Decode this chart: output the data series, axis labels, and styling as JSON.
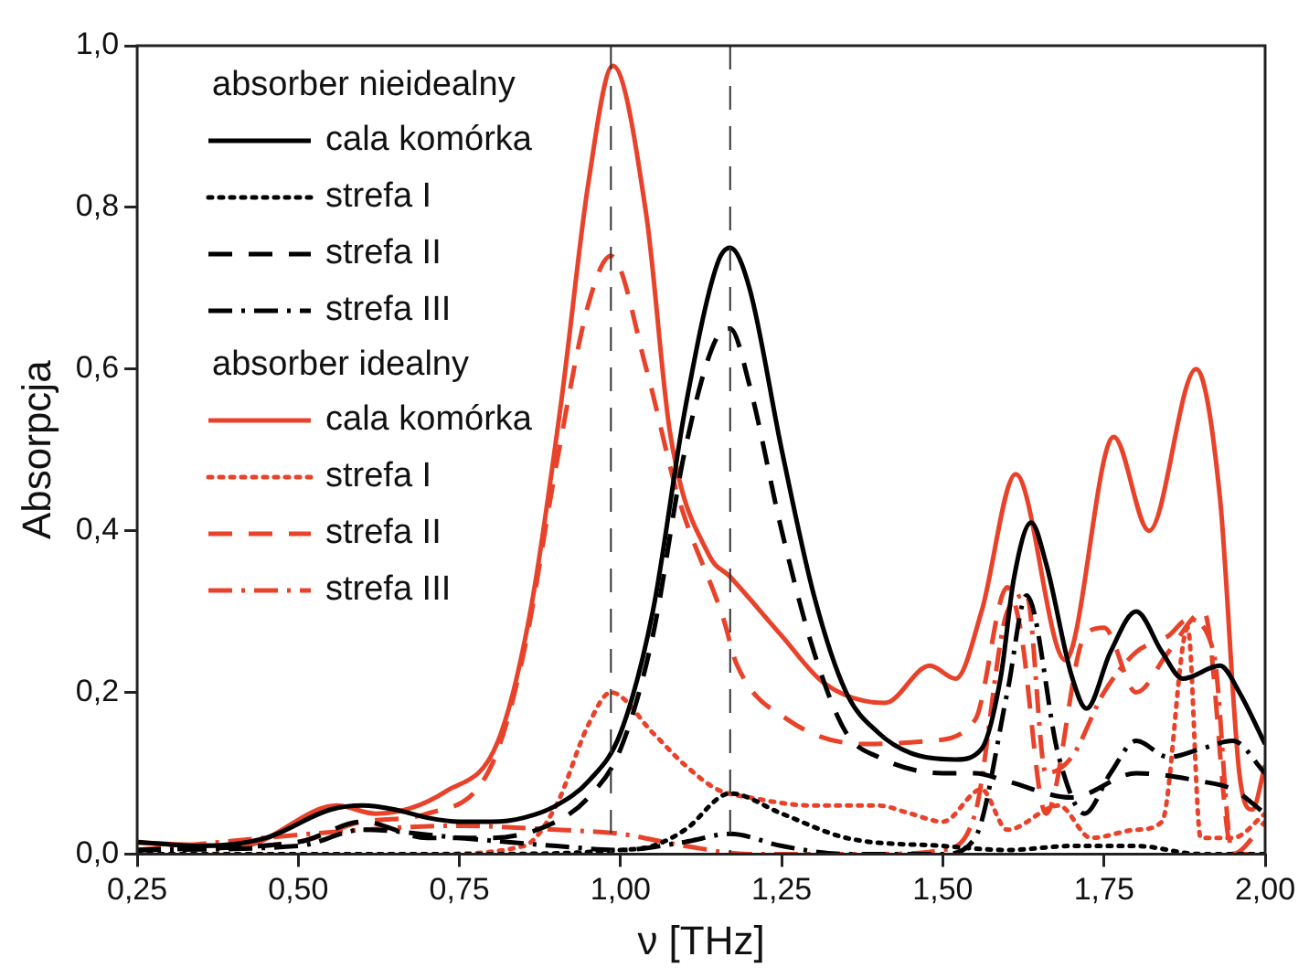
{
  "chart_data": {
    "type": "line",
    "xlabel": "ν [THz]",
    "ylabel": "Absorpcja",
    "xlim": [
      0.25,
      2.0
    ],
    "ylim": [
      0,
      1
    ],
    "xticks": [
      {
        "value": 0.25,
        "label": "0,25"
      },
      {
        "value": 0.5,
        "label": "0,50"
      },
      {
        "value": 0.75,
        "label": "0,75"
      },
      {
        "value": 1.0,
        "label": "1,00"
      },
      {
        "value": 1.25,
        "label": "1,25"
      },
      {
        "value": 1.5,
        "label": "1,50"
      },
      {
        "value": 1.75,
        "label": "1,75"
      },
      {
        "value": 2.0,
        "label": "2,00"
      }
    ],
    "yticks": [
      {
        "value": 0,
        "label": "0,0"
      },
      {
        "value": 0.2,
        "label": "0,2"
      },
      {
        "value": 0.4,
        "label": "0,4"
      },
      {
        "value": 0.6,
        "label": "0,6"
      },
      {
        "value": 0.8,
        "label": "0,8"
      },
      {
        "value": 1.0,
        "label": "1,0"
      }
    ],
    "grid": false,
    "legend": "top left",
    "marker": "none",
    "annotations": [
      "absorber nieidealny",
      "absorber idealny"
    ],
    "ref_lines": [
      {
        "axis": "x",
        "value": 0.985,
        "color": "#333333",
        "line_style": "dashed"
      },
      {
        "axis": "x",
        "value": 1.17,
        "color": "#333333",
        "line_style": "dashed"
      }
    ],
    "series": [
      {
        "name": "cala komórka",
        "color": "#000000",
        "line_style": "solid",
        "x": [
          0.25,
          0.35,
          0.45,
          0.55,
          0.6,
          0.65,
          0.7,
          0.75,
          0.8,
          0.85,
          0.9,
          0.95,
          1.0,
          1.05,
          1.1,
          1.15,
          1.17,
          1.2,
          1.25,
          1.3,
          1.35,
          1.4,
          1.45,
          1.52,
          1.56,
          1.59,
          1.61,
          1.637,
          1.66,
          1.7,
          1.723,
          1.76,
          1.8,
          1.84,
          1.872,
          1.93,
          1.96,
          2.0
        ],
        "values": [
          0.015,
          0.01,
          0.02,
          0.055,
          0.06,
          0.055,
          0.045,
          0.04,
          0.04,
          0.045,
          0.06,
          0.09,
          0.15,
          0.3,
          0.55,
          0.73,
          0.75,
          0.7,
          0.5,
          0.32,
          0.2,
          0.15,
          0.125,
          0.117,
          0.13,
          0.22,
          0.34,
          0.41,
          0.36,
          0.22,
          0.18,
          0.25,
          0.3,
          0.25,
          0.217,
          0.233,
          0.2,
          0.136
        ]
      },
      {
        "name": "strefa I",
        "color": "#000000",
        "line_style": "dotted",
        "x": [
          0.25,
          0.5,
          0.8,
          1.0,
          1.05,
          1.1,
          1.17,
          1.25,
          1.35,
          1.5,
          1.6,
          1.7,
          1.8,
          1.9,
          2.0
        ],
        "values": [
          0.0,
          0.0,
          0.0,
          0.005,
          0.01,
          0.03,
          0.075,
          0.05,
          0.02,
          0.01,
          0.005,
          0.01,
          0.01,
          0.0,
          0.0
        ]
      },
      {
        "name": "strefa II",
        "color": "#000000",
        "line_style": "dashed",
        "x": [
          0.25,
          0.5,
          0.6,
          0.7,
          0.8,
          0.9,
          0.95,
          1.0,
          1.05,
          1.1,
          1.15,
          1.17,
          1.2,
          1.25,
          1.3,
          1.35,
          1.4,
          1.5,
          1.55,
          1.6,
          1.7,
          1.8,
          1.9,
          1.95,
          2.0
        ],
        "values": [
          0.005,
          0.015,
          0.04,
          0.02,
          0.02,
          0.04,
          0.07,
          0.13,
          0.27,
          0.5,
          0.64,
          0.65,
          0.58,
          0.4,
          0.25,
          0.15,
          0.12,
          0.1,
          0.1,
          0.09,
          0.07,
          0.1,
          0.09,
          0.08,
          0.05
        ]
      },
      {
        "name": "strefa III",
        "color": "#000000",
        "line_style": "dashdot",
        "x": [
          0.25,
          0.5,
          0.6,
          0.75,
          0.9,
          1.0,
          1.1,
          1.17,
          1.25,
          1.35,
          1.5,
          1.55,
          1.6,
          1.63,
          1.68,
          1.72,
          1.76,
          1.8,
          1.85,
          1.9,
          1.95,
          2.0
        ],
        "values": [
          0.005,
          0.01,
          0.03,
          0.02,
          0.01,
          0.005,
          0.015,
          0.025,
          0.01,
          0.0,
          0.0,
          0.02,
          0.2,
          0.32,
          0.12,
          0.05,
          0.1,
          0.14,
          0.12,
          0.13,
          0.14,
          0.1
        ]
      },
      {
        "name": "cala komórka",
        "color": "#e8432a",
        "line_style": "solid",
        "x": [
          0.25,
          0.41,
          0.56,
          0.62,
          0.73,
          0.81,
          0.86,
          0.908,
          0.95,
          0.988,
          1.04,
          1.077,
          1.137,
          1.17,
          1.25,
          1.315,
          1.41,
          1.48,
          1.52,
          1.56,
          1.613,
          1.69,
          1.765,
          1.82,
          1.893,
          1.93,
          1.96,
          1.98,
          2.0
        ],
        "values": [
          0.014,
          0.01,
          0.06,
          0.05,
          0.078,
          0.14,
          0.3,
          0.56,
          0.83,
          0.975,
          0.79,
          0.52,
          0.37,
          0.343,
          0.27,
          0.212,
          0.187,
          0.233,
          0.217,
          0.3,
          0.47,
          0.24,
          0.516,
          0.4,
          0.6,
          0.44,
          0.1,
          0.055,
          0.11
        ]
      },
      {
        "name": "strefa I",
        "color": "#e8432a",
        "line_style": "dotted",
        "x": [
          0.25,
          0.7,
          0.85,
          0.9,
          0.95,
          0.985,
          1.05,
          1.1,
          1.15,
          1.2,
          1.3,
          1.4,
          1.45,
          1.5,
          1.56,
          1.6,
          1.68,
          1.73,
          1.8,
          1.84,
          1.88,
          1.9,
          1.95,
          2.0
        ],
        "values": [
          0.0,
          0.0,
          0.01,
          0.06,
          0.16,
          0.2,
          0.15,
          0.11,
          0.08,
          0.07,
          0.06,
          0.06,
          0.05,
          0.04,
          0.08,
          0.03,
          0.06,
          0.02,
          0.03,
          0.04,
          0.28,
          0.02,
          0.02,
          0.05
        ]
      },
      {
        "name": "strefa II",
        "color": "#e8432a",
        "line_style": "dashed",
        "x": [
          0.25,
          0.5,
          0.6,
          0.7,
          0.8,
          0.85,
          0.9,
          0.95,
          0.985,
          1.04,
          1.09,
          1.16,
          1.18,
          1.26,
          1.38,
          1.48,
          1.55,
          1.6,
          1.62,
          1.66,
          1.72,
          1.75,
          1.8,
          1.85,
          1.905,
          1.95,
          2.0
        ],
        "values": [
          0.005,
          0.015,
          0.04,
          0.05,
          0.11,
          0.25,
          0.48,
          0.68,
          0.74,
          0.6,
          0.44,
          0.29,
          0.235,
          0.166,
          0.136,
          0.14,
          0.166,
          0.33,
          0.28,
          0.05,
          0.27,
          0.28,
          0.2,
          0.25,
          0.3,
          0.0,
          0.04
        ]
      },
      {
        "name": "strefa III",
        "color": "#e8432a",
        "line_style": "dashdot",
        "x": [
          0.25,
          0.6,
          0.75,
          0.9,
          1.0,
          1.1,
          1.2,
          1.4,
          1.5,
          1.55,
          1.6,
          1.63,
          1.66,
          1.7,
          1.75,
          1.8,
          1.85,
          1.88,
          1.92,
          1.95,
          2.0
        ],
        "values": [
          0.005,
          0.03,
          0.035,
          0.03,
          0.025,
          0.01,
          0.0,
          0.0,
          0.005,
          0.05,
          0.3,
          0.32,
          0.1,
          0.12,
          0.2,
          0.25,
          0.27,
          0.29,
          0.25,
          0.0,
          0.0
        ]
      }
    ]
  }
}
